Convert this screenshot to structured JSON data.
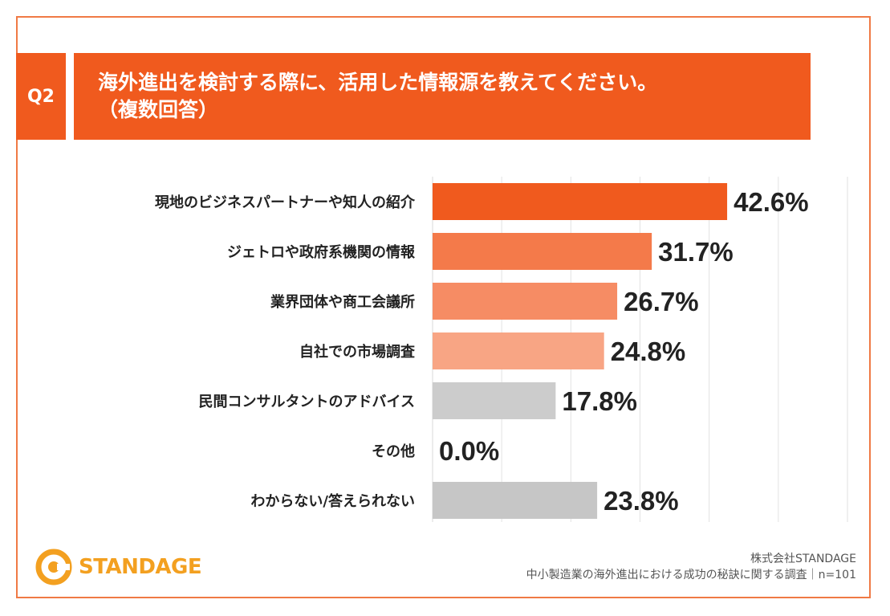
{
  "question": {
    "badge": "Q2",
    "line1": "海外進出を検討する際に、活用した情報源を教えてください。",
    "line2": "（複数回答）"
  },
  "chart_data": {
    "type": "bar",
    "orientation": "horizontal",
    "categories": [
      "現地のビジネスパートナーや知人の紹介",
      "ジェトロや政府系機関の情報",
      "業界団体や商工会議所",
      "自社での市場調査",
      "民間コンサルタントのアドバイス",
      "その他",
      "わからない/答えられない"
    ],
    "values": [
      42.6,
      31.7,
      26.7,
      24.8,
      17.8,
      0.0,
      23.8
    ],
    "value_labels": [
      "42.6%",
      "31.7%",
      "26.7%",
      "24.8%",
      "17.8%",
      "0.0%",
      "23.8%"
    ],
    "colors": [
      "#f05a1e",
      "#f47a4a",
      "#f68c64",
      "#f8a584",
      "#cccccc",
      "#cccccc",
      "#c6c6c6"
    ],
    "xlim": [
      0,
      60
    ],
    "grid": true
  },
  "logo": {
    "name": "STANDAGE"
  },
  "credit": {
    "company": "株式会社STANDAGE",
    "survey": "中小製造業の海外進出における成功の秘訣に関する調査｜n=101"
  }
}
